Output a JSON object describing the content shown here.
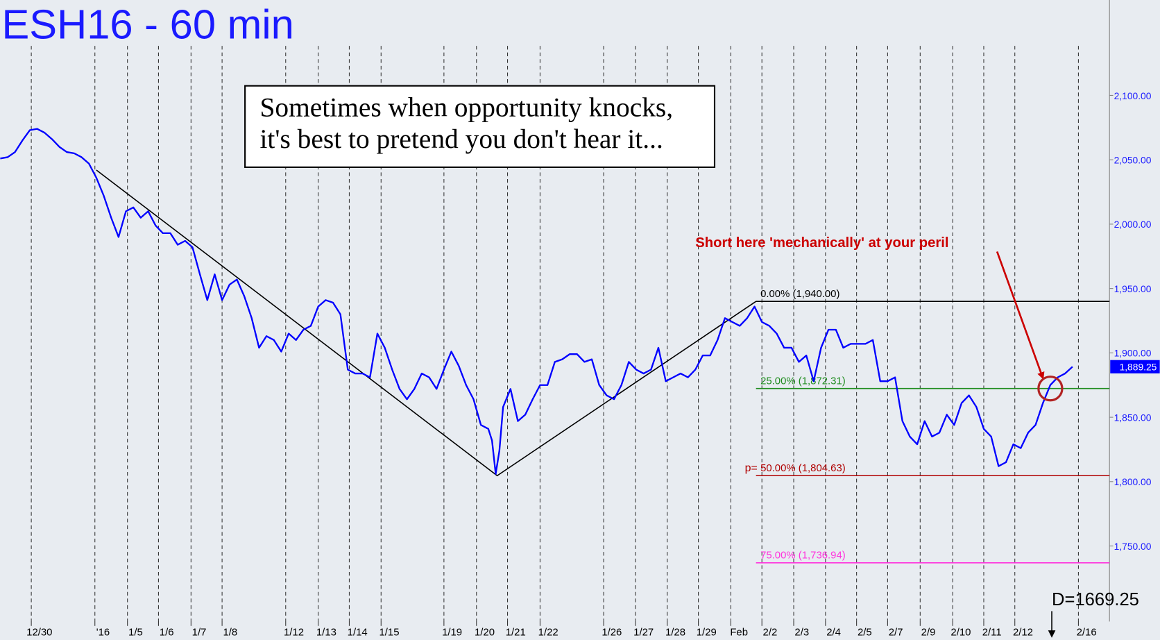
{
  "chart_data": {
    "type": "line",
    "title": "ESH16 - 60 min",
    "note_lines": [
      "Sometimes when opportunity knocks,",
      "it's best to pretend you don't hear it..."
    ],
    "xlim": [
      0,
      1500
    ],
    "ylim": [
      1692.5,
      2174.1
    ],
    "grid": true,
    "xticks": [
      {
        "value": 42,
        "label": "12/30"
      },
      {
        "value": 128,
        "label": "'16"
      },
      {
        "value": 172,
        "label": "1/5"
      },
      {
        "value": 214,
        "label": "1/6"
      },
      {
        "value": 258,
        "label": "1/7"
      },
      {
        "value": 300,
        "label": "1/8"
      },
      {
        "value": 386,
        "label": "1/12"
      },
      {
        "value": 430,
        "label": "1/13"
      },
      {
        "value": 472,
        "label": "1/14"
      },
      {
        "value": 515,
        "label": "1/15"
      },
      {
        "value": 600,
        "label": "1/19"
      },
      {
        "value": 644,
        "label": "1/20"
      },
      {
        "value": 686,
        "label": "1/21"
      },
      {
        "value": 730,
        "label": "1/22"
      },
      {
        "value": 816,
        "label": "1/26"
      },
      {
        "value": 859,
        "label": "1/27"
      },
      {
        "value": 902,
        "label": "1/28"
      },
      {
        "value": 944,
        "label": "1/29"
      },
      {
        "value": 988,
        "label": "Feb"
      },
      {
        "value": 1030,
        "label": "2/2"
      },
      {
        "value": 1073,
        "label": "2/3"
      },
      {
        "value": 1116,
        "label": "2/4"
      },
      {
        "value": 1158,
        "label": "2/5"
      },
      {
        "value": 1200,
        "label": "2/7"
      },
      {
        "value": 1244,
        "label": "2/9"
      },
      {
        "value": 1288,
        "label": "2/10"
      },
      {
        "value": 1330,
        "label": "2/11"
      },
      {
        "value": 1372,
        "label": "2/12"
      },
      {
        "value": 1458,
        "label": "2/16"
      }
    ],
    "yticks": [
      {
        "value": 1750,
        "label": "1,750.00"
      },
      {
        "value": 1800,
        "label": "1,800.00"
      },
      {
        "value": 1850,
        "label": "1,850.00"
      },
      {
        "value": 1900,
        "label": "1,900.00"
      },
      {
        "value": 1950,
        "label": "1,950.00"
      },
      {
        "value": 2000,
        "label": "2,000.00"
      },
      {
        "value": 2050,
        "label": "2,050.00"
      },
      {
        "value": 2100,
        "label": "2,100.00"
      }
    ],
    "series": [
      {
        "color": "#0000ff",
        "last_label": "1,889.25",
        "x": [
          0,
          10,
          20,
          30,
          40,
          50,
          60,
          70,
          80,
          90,
          100,
          110,
          120,
          130,
          140,
          150,
          160,
          170,
          180,
          190,
          200,
          210,
          220,
          230,
          240,
          250,
          260,
          270,
          280,
          290,
          300,
          310,
          320,
          330,
          340,
          350,
          360,
          370,
          380,
          390,
          400,
          410,
          420,
          430,
          440,
          450,
          460,
          470,
          480,
          490,
          500,
          510,
          520,
          530,
          540,
          550,
          560,
          570,
          580,
          590,
          600,
          610,
          620,
          630,
          640,
          650,
          660,
          665,
          670,
          675,
          680,
          690,
          700,
          710,
          720,
          730,
          740,
          750,
          760,
          770,
          780,
          790,
          800,
          810,
          820,
          830,
          840,
          850,
          860,
          870,
          880,
          890,
          900,
          910,
          920,
          930,
          940,
          950,
          960,
          970,
          980,
          990,
          1000,
          1010,
          1020,
          1030,
          1040,
          1050,
          1060,
          1070,
          1080,
          1090,
          1100,
          1110,
          1120,
          1130,
          1140,
          1150,
          1160,
          1170,
          1180,
          1190,
          1200,
          1210,
          1220,
          1230,
          1240,
          1250,
          1260,
          1270,
          1280,
          1290,
          1300,
          1310,
          1320,
          1330,
          1340,
          1350,
          1360,
          1370,
          1380,
          1390,
          1400,
          1410,
          1420,
          1430,
          1440,
          1450
        ],
        "values": [
          2051,
          2052,
          2056,
          2065,
          2073,
          2074,
          2071,
          2066,
          2060,
          2056,
          2055,
          2052,
          2047,
          2036,
          2022,
          2005,
          1990,
          2010,
          2013,
          2005,
          2010,
          1999,
          1993,
          1993,
          1984,
          1987,
          1982,
          1961,
          1941,
          1961,
          1941,
          1953,
          1957,
          1944,
          1927,
          1904,
          1913,
          1910,
          1901,
          1915,
          1910,
          1918,
          1921,
          1936,
          1941,
          1939,
          1930,
          1887,
          1884,
          1884,
          1881,
          1915,
          1904,
          1887,
          1872,
          1864,
          1872,
          1884,
          1881,
          1872,
          1887,
          1901,
          1890,
          1875,
          1864,
          1844,
          1841,
          1832,
          1806,
          1824,
          1858,
          1872,
          1847,
          1852,
          1864,
          1875,
          1875,
          1893,
          1895,
          1899,
          1899,
          1893,
          1895,
          1875,
          1867,
          1864,
          1875,
          1893,
          1887,
          1884,
          1887,
          1904,
          1878,
          1881,
          1884,
          1881,
          1887,
          1898,
          1898,
          1910,
          1927,
          1924,
          1921,
          1927,
          1936,
          1924,
          1921,
          1915,
          1904,
          1904,
          1893,
          1898,
          1878,
          1904,
          1918,
          1918,
          1904,
          1907,
          1907,
          1907,
          1910,
          1878,
          1878,
          1881,
          1847,
          1835,
          1829,
          1847,
          1835,
          1838,
          1852,
          1844,
          1861,
          1867,
          1858,
          1841,
          1835,
          1812,
          1815,
          1829,
          1826,
          1838,
          1844,
          1861,
          1875,
          1881,
          1884,
          1889.25
        ]
      }
    ],
    "trendline": {
      "color": "#000000",
      "x": [
        130,
        672,
        1022
      ],
      "values": [
        2042,
        1804.63,
        1940
      ]
    },
    "levels": [
      {
        "label": "0.00% (1,940.00)",
        "value": 1940,
        "color": "#000000",
        "x": 1022
      },
      {
        "label": "25.00% (1,872.31)",
        "value": 1872.31,
        "color": "#1e8c1e",
        "x": 1022
      },
      {
        "label": "50.00% (1,804.63)",
        "value": 1804.63,
        "color": "#b00000",
        "x": 1022,
        "prefix": "p="
      },
      {
        "label": "75.00% (1,736.94)",
        "value": 1736.94,
        "color": "#ff33dd",
        "x": 1022
      }
    ],
    "annotation": {
      "text": "Short here 'mechanically' at your peril",
      "color": "#cc0000",
      "x": 1420,
      "y": 1872.31
    },
    "marker": {
      "text": "D=1669.25",
      "x": 1422
    }
  }
}
